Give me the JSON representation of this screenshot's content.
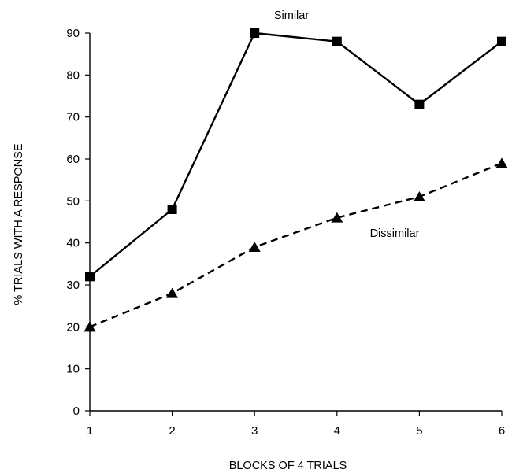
{
  "chart_data": {
    "type": "line",
    "title": "",
    "xlabel": "BLOCKS OF 4 TRIALS",
    "ylabel": "% TRIALS WITH A RESPONSE",
    "x": [
      1,
      2,
      3,
      4,
      5,
      6
    ],
    "x_tick_labels": [
      "1",
      "2",
      "3",
      "4",
      "5",
      "6"
    ],
    "xlim": [
      1,
      6
    ],
    "ylim": [
      0,
      90
    ],
    "y_ticks": [
      0,
      10,
      20,
      30,
      40,
      50,
      60,
      70,
      80,
      90
    ],
    "y_tick_labels": [
      "0",
      "10",
      "20",
      "30",
      "40",
      "50",
      "60",
      "70",
      "80",
      "90"
    ],
    "grid": false,
    "series": [
      {
        "name": "Similar",
        "values": [
          32,
          48,
          90,
          88,
          73,
          88
        ],
        "line_style": "solid",
        "marker": "square",
        "color": "#000000"
      },
      {
        "name": "Dissimilar",
        "values": [
          20,
          28,
          39,
          46,
          51,
          59
        ],
        "line_style": "dashed",
        "marker": "triangle",
        "color": "#000000"
      }
    ]
  }
}
